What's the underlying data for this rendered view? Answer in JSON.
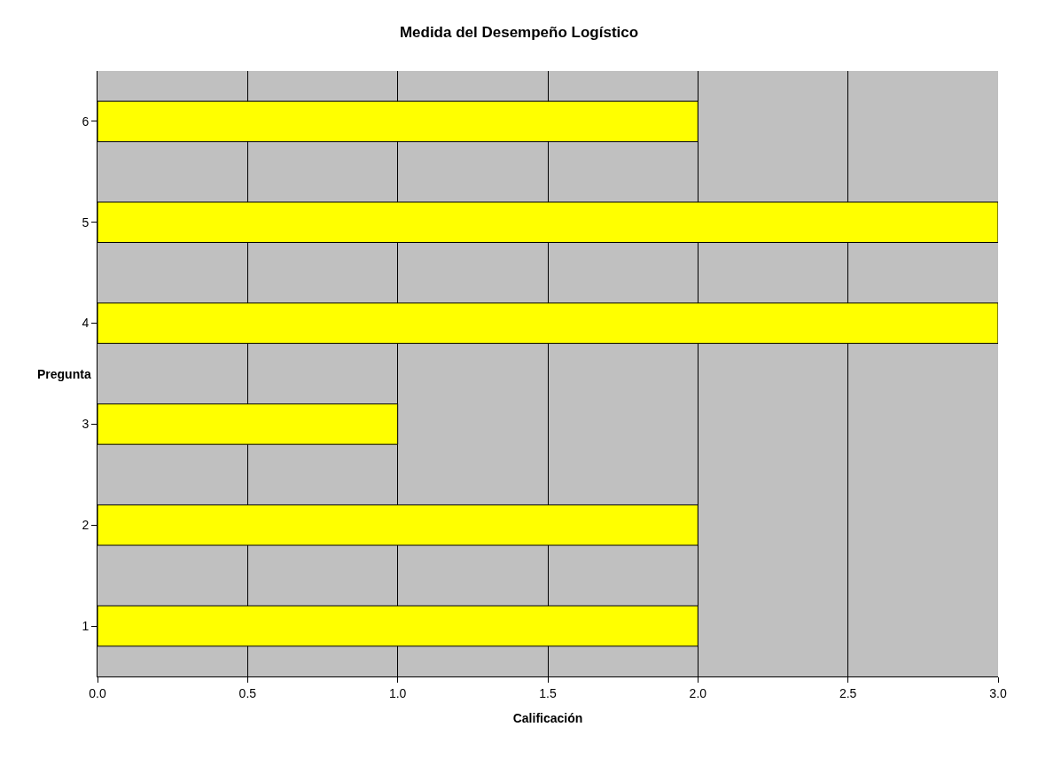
{
  "chart_data": {
    "type": "bar",
    "title": "Medida del Desempeño Logístico",
    "xlabel": "Calificación",
    "ylabel": "Pregunta",
    "orientation": "horizontal",
    "categories": [
      "6",
      "5",
      "4",
      "3",
      "2",
      "1"
    ],
    "values": [
      2,
      3,
      3,
      1,
      2,
      2
    ],
    "color": "#ffff00",
    "xlim": [
      0,
      3
    ],
    "xticks": [
      {
        "value": 0,
        "label": "0.0"
      },
      0.5,
      {
        "value": 1,
        "label": "1.0"
      },
      1.5,
      {
        "value": 2,
        "label": "2.0"
      },
      2.5,
      {
        "value": 3,
        "label": "3.0"
      }
    ],
    "grid": "x"
  }
}
